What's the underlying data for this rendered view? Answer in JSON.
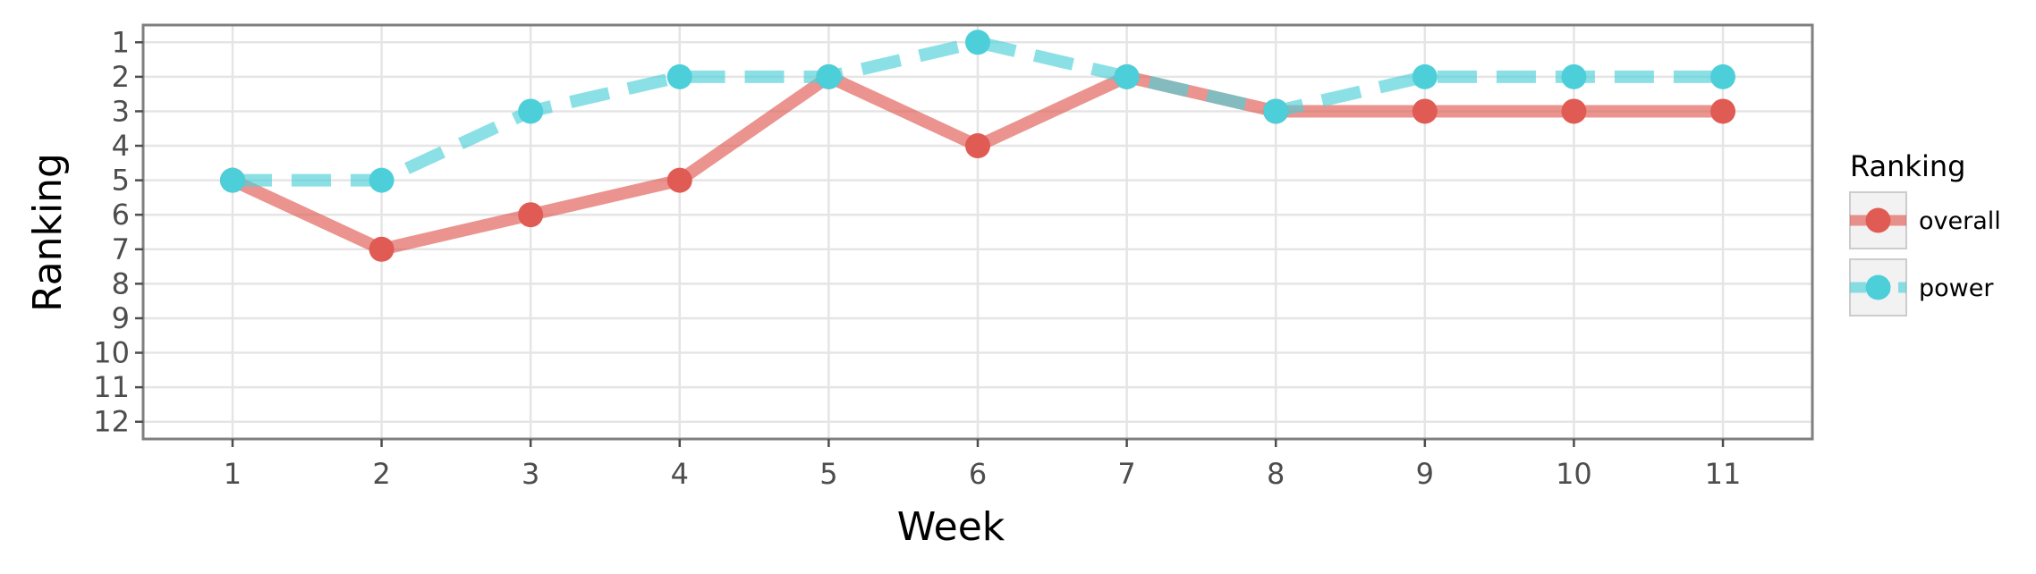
{
  "chart_data": {
    "type": "line",
    "xlabel": "Week",
    "ylabel": "Ranking",
    "x": [
      1,
      2,
      3,
      4,
      5,
      6,
      7,
      8,
      9,
      10,
      11
    ],
    "xlim": [
      0.4,
      11.6
    ],
    "ylim": [
      12.5,
      0.5
    ],
    "y_reversed": true,
    "y_ticks": [
      1,
      2,
      3,
      4,
      5,
      6,
      7,
      8,
      9,
      10,
      11,
      12
    ],
    "grid": true,
    "legend": {
      "title": "Ranking",
      "position": "right"
    },
    "series": [
      {
        "name": "overall",
        "values": [
          5,
          7,
          6,
          5,
          2,
          4,
          2,
          3,
          3,
          3,
          3
        ],
        "color": "#e05b53",
        "line_style": "solid"
      },
      {
        "name": "power",
        "values": [
          5,
          5,
          3,
          2,
          2,
          1,
          2,
          3,
          2,
          2,
          2
        ],
        "color": "#4dcfd9",
        "line_style": "dashed"
      }
    ]
  }
}
